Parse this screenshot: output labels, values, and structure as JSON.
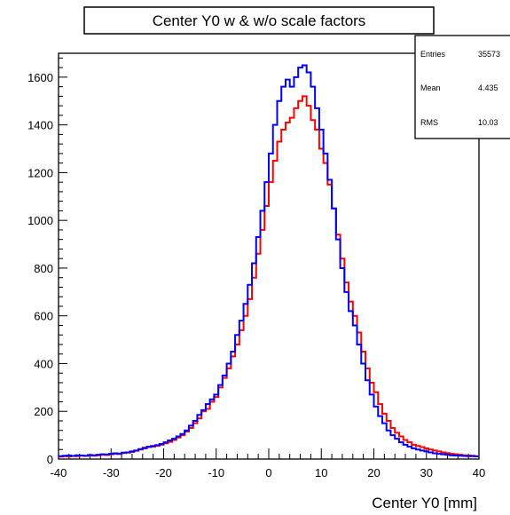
{
  "chart_data": {
    "type": "histogram",
    "title": "Center Y0 w & w/o scale factors",
    "xlabel": "Center Y0 [mm]",
    "ylabel": "",
    "xlim": [
      -40,
      40
    ],
    "ylim": [
      0,
      1700
    ],
    "x_ticks": [
      -40,
      -30,
      -20,
      -10,
      0,
      10,
      20,
      30,
      40
    ],
    "y_ticks": [
      0,
      200,
      400,
      600,
      800,
      1000,
      1200,
      1400,
      1600
    ],
    "grid": false,
    "stats_box": {
      "rows": [
        {
          "label": "Entries",
          "value": "35573"
        },
        {
          "label": "Mean",
          "value": "4.435"
        },
        {
          "label": "RMS",
          "value": "10.03"
        }
      ]
    },
    "bin_edges_range": [
      -40,
      40
    ],
    "bin_count": 100,
    "series": [
      {
        "color": "#ff0000",
        "values": [
          10,
          12,
          11,
          13,
          12,
          14,
          13,
          15,
          14,
          16,
          18,
          17,
          20,
          22,
          21,
          25,
          27,
          30,
          35,
          40,
          48,
          50,
          52,
          56,
          60,
          66,
          72,
          80,
          90,
          100,
          115,
          130,
          150,
          170,
          200,
          210,
          240,
          260,
          300,
          340,
          380,
          430,
          480,
          540,
          600,
          670,
          760,
          860,
          960,
          1060,
          1160,
          1250,
          1330,
          1380,
          1410,
          1430,
          1470,
          1500,
          1520,
          1480,
          1420,
          1380,
          1300,
          1240,
          1150,
          1050,
          940,
          840,
          740,
          660,
          600,
          530,
          450,
          380,
          320,
          280,
          230,
          190,
          160,
          130,
          110,
          95,
          80,
          70,
          60,
          55,
          50,
          45,
          40,
          36,
          32,
          28,
          25,
          22,
          20,
          18,
          16,
          15,
          14,
          12
        ]
      },
      {
        "color": "#0000ff",
        "values": [
          12,
          14,
          15,
          13,
          16,
          15,
          14,
          17,
          16,
          18,
          20,
          19,
          22,
          24,
          23,
          27,
          28,
          32,
          36,
          42,
          45,
          52,
          55,
          58,
          63,
          70,
          78,
          85,
          95,
          105,
          120,
          140,
          160,
          185,
          205,
          230,
          250,
          270,
          310,
          350,
          400,
          450,
          520,
          580,
          650,
          730,
          820,
          930,
          1040,
          1160,
          1280,
          1400,
          1500,
          1560,
          1590,
          1560,
          1600,
          1640,
          1650,
          1620,
          1560,
          1470,
          1380,
          1280,
          1170,
          1050,
          920,
          800,
          700,
          620,
          560,
          480,
          400,
          330,
          270,
          220,
          180,
          150,
          120,
          100,
          85,
          70,
          60,
          52,
          45,
          40,
          36,
          32,
          28,
          24,
          22,
          20,
          18,
          16,
          15,
          14,
          13,
          12,
          12,
          11
        ]
      }
    ]
  }
}
